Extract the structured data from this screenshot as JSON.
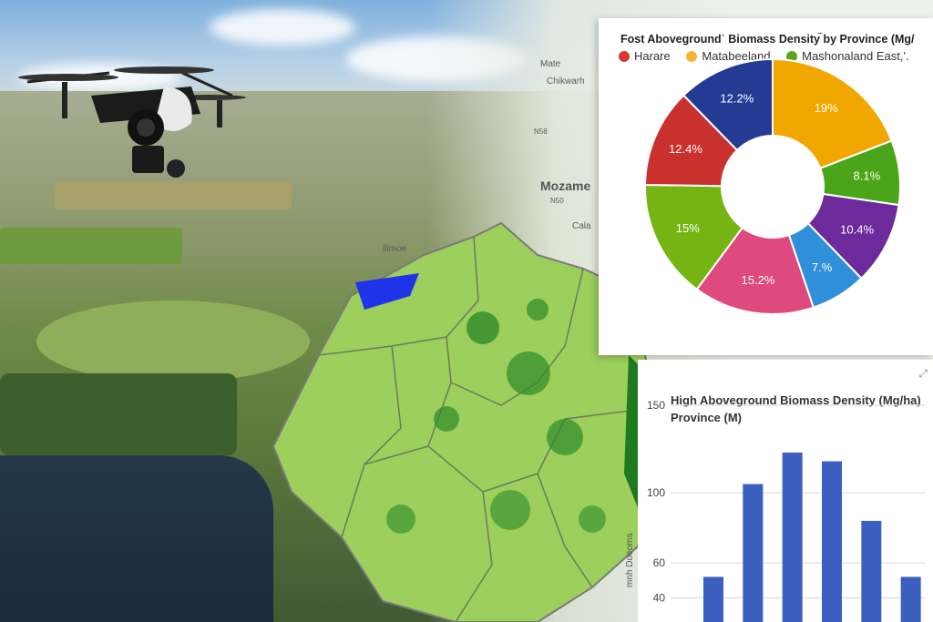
{
  "map": {
    "labels": [
      "Mate",
      "Chikwarh",
      "Mozame",
      "Cala",
      "llimoe"
    ],
    "road_labels": [
      "N58",
      "N50"
    ]
  },
  "chart_data": [
    {
      "type": "pie",
      "title": "Fost Abovegroundˈ Biomass Density ̃by Province (Mg/",
      "legend": [
        {
          "name": "Harare",
          "color": "#d93636"
        },
        {
          "name": "Matabeeland",
          "color": "#f2b731"
        },
        {
          "name": "Mashonaland East,'.",
          "color": "#5aa51c"
        }
      ],
      "slices": [
        {
          "label": "19%",
          "value": 19,
          "color": "#f0a800"
        },
        {
          "label": "8.1%",
          "value": 8.1,
          "color": "#4aa51b"
        },
        {
          "label": "10.4%",
          "value": 10.4,
          "color": "#6d2a9a"
        },
        {
          "label": "7.%",
          "value": 7,
          "color": "#2f8fd8"
        },
        {
          "label": "15.2%",
          "value": 15.2,
          "color": "#de4a7d"
        },
        {
          "label": "15%",
          "value": 15,
          "color": "#76b413"
        },
        {
          "label": "12.4%",
          "value": 12.4,
          "color": "#c8312d"
        },
        {
          "label": "12.2%",
          "value": 12.2,
          "color": "#253a93"
        }
      ]
    },
    {
      "type": "bar",
      "title": "High Aboveground Biomass Density (Mg/ha) Province (M)",
      "ylabel": "mnh Doeoms",
      "yticks": [
        40,
        60,
        100,
        150
      ],
      "ylim": [
        20,
        150
      ],
      "values": [
        52,
        105,
        123,
        118,
        84,
        52
      ],
      "color": "#3a5fbf"
    }
  ]
}
